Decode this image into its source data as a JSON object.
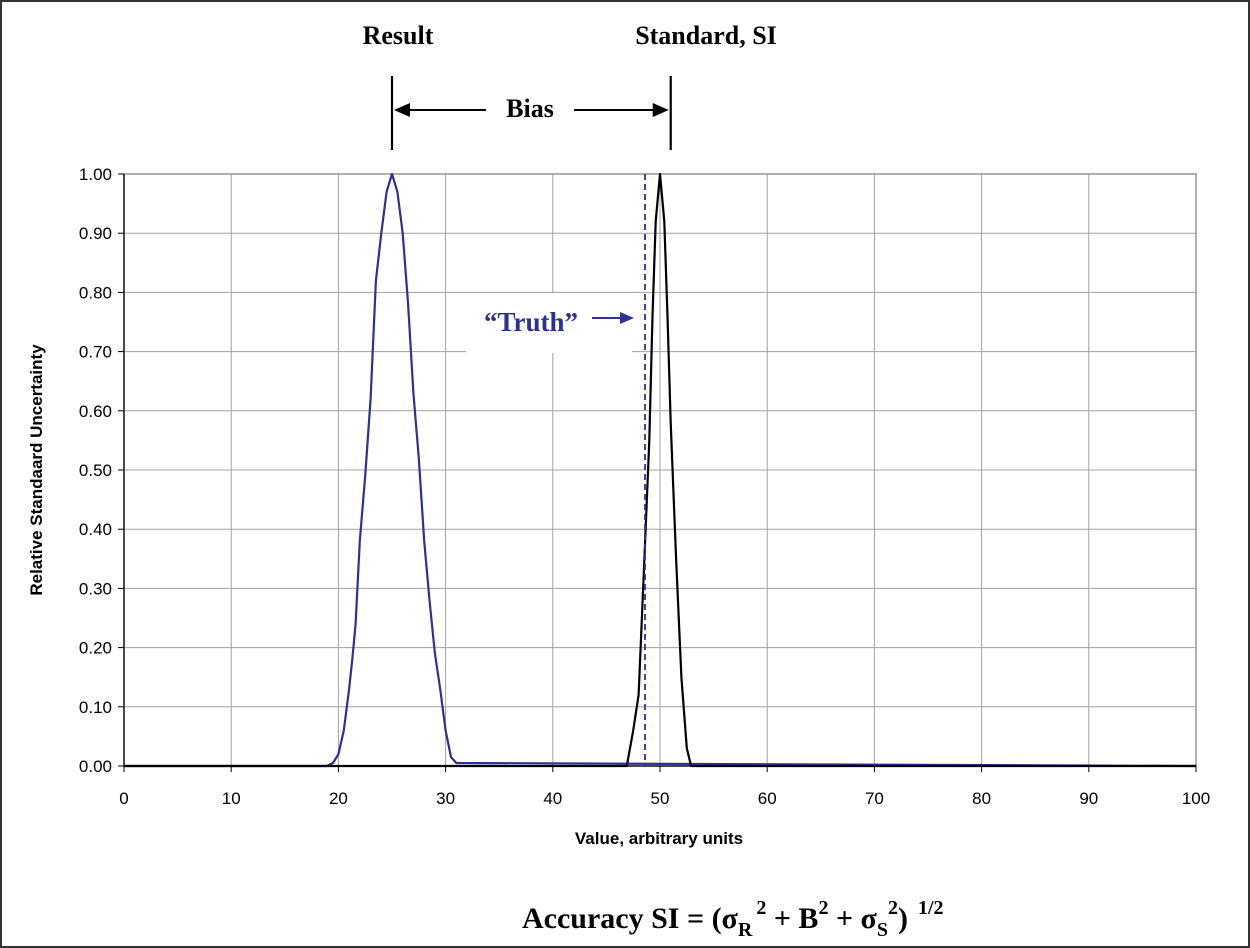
{
  "chart_data": {
    "type": "line",
    "xlabel": "Value, arbitrary units",
    "ylabel": "Relative Standaard Uncertainty",
    "xlim": [
      0,
      100
    ],
    "ylim": [
      0,
      1.0
    ],
    "x_ticks": [
      "0",
      "10",
      "20",
      "30",
      "40",
      "50",
      "60",
      "70",
      "80",
      "90",
      "100"
    ],
    "y_ticks": [
      "0.00",
      "0.10",
      "0.20",
      "0.30",
      "0.40",
      "0.50",
      "0.60",
      "0.70",
      "0.80",
      "0.90",
      "1.00"
    ],
    "grid": true,
    "series": [
      {
        "color": "#2e3192",
        "x": [
          0,
          18.9,
          19.5,
          20.0,
          20.5,
          21.0,
          21.3,
          21.6,
          22.0,
          22.5,
          23.0,
          23.5,
          24.0,
          24.5,
          25.0,
          25.5,
          26.0,
          26.5,
          27.0,
          27.5,
          28.0,
          28.5,
          29.0,
          29.5,
          30.0,
          30.5,
          31.0,
          100
        ],
        "y": [
          0,
          0,
          0.005,
          0.02,
          0.06,
          0.13,
          0.18,
          0.24,
          0.38,
          0.49,
          0.62,
          0.82,
          0.9,
          0.97,
          1.0,
          0.97,
          0.9,
          0.78,
          0.63,
          0.52,
          0.38,
          0.28,
          0.19,
          0.13,
          0.06,
          0.015,
          0.005,
          0
        ]
      },
      {
        "color": "#000000",
        "x": [
          0,
          46.9,
          47.5,
          48.0,
          48.5,
          49.0,
          49.3,
          49.6,
          50.0,
          50.4,
          50.7,
          51.0,
          51.5,
          52.0,
          52.5,
          52.9,
          100
        ],
        "y": [
          0,
          0,
          0.06,
          0.12,
          0.33,
          0.55,
          0.76,
          0.92,
          1.0,
          0.92,
          0.76,
          0.58,
          0.35,
          0.15,
          0.03,
          0,
          0
        ]
      }
    ],
    "truth_line": {
      "x": 48.6,
      "color": "#2e3192"
    },
    "annotations": {
      "result_label": "Result",
      "standard_label": "Standard, SI",
      "bias_label": "Bias",
      "truth_label": "“Truth”",
      "result_marker_x": 25,
      "standard_marker_x": 51
    },
    "formula": {
      "prefix": "Accuracy SI = (σ",
      "sub_r": "R",
      "sup_r": "2",
      "mid1": " + B",
      "sup_b": "2",
      "mid2": " + σ",
      "sub_s": "S",
      "sup_s": "2",
      "close": ")",
      "exponent": "1/2"
    }
  }
}
